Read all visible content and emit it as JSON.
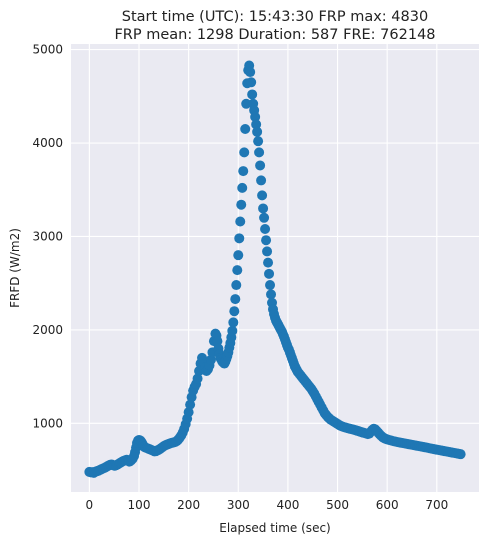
{
  "chart_data": {
    "type": "scatter",
    "title_line1": "Start time (UTC): 15:43:30 FRP max: 4830",
    "title_line2": "FRP mean: 1298 Duration: 587 FRE: 762148",
    "xlabel": "Elapsed time (sec)",
    "ylabel": "FRFD (W/m2)",
    "xlim": [
      -37,
      785
    ],
    "ylim": [
      265,
      5060
    ],
    "xticks": [
      0,
      100,
      200,
      300,
      400,
      500,
      600,
      700
    ],
    "yticks": [
      1000,
      2000,
      3000,
      4000,
      5000
    ],
    "grid": true,
    "marker_color": "#1f77b4",
    "background": "#eaeaf2",
    "series": [
      {
        "points": [
          [
            0,
            480
          ],
          [
            3,
            475
          ],
          [
            6,
            478
          ],
          [
            9,
            470
          ],
          [
            12,
            482
          ],
          [
            15,
            488
          ],
          [
            18,
            492
          ],
          [
            21,
            500
          ],
          [
            24,
            508
          ],
          [
            27,
            515
          ],
          [
            30,
            522
          ],
          [
            33,
            530
          ],
          [
            36,
            540
          ],
          [
            39,
            548
          ],
          [
            42,
            556
          ],
          [
            45,
            560
          ],
          [
            48,
            552
          ],
          [
            51,
            546
          ],
          [
            54,
            552
          ],
          [
            57,
            560
          ],
          [
            60,
            570
          ],
          [
            63,
            580
          ],
          [
            66,
            590
          ],
          [
            69,
            598
          ],
          [
            72,
            604
          ],
          [
            75,
            610
          ],
          [
            78,
            598
          ],
          [
            81,
            590
          ],
          [
            84,
            602
          ],
          [
            87,
            620
          ],
          [
            90,
            650
          ],
          [
            92,
            690
          ],
          [
            94,
            740
          ],
          [
            96,
            790
          ],
          [
            98,
            815
          ],
          [
            100,
            822
          ],
          [
            102,
            818
          ],
          [
            104,
            808
          ],
          [
            106,
            790
          ],
          [
            108,
            770
          ],
          [
            110,
            750
          ],
          [
            113,
            740
          ],
          [
            116,
            735
          ],
          [
            119,
            728
          ],
          [
            122,
            722
          ],
          [
            125,
            715
          ],
          [
            128,
            708
          ],
          [
            131,
            700
          ],
          [
            134,
            702
          ],
          [
            137,
            710
          ],
          [
            140,
            718
          ],
          [
            143,
            728
          ],
          [
            146,
            740
          ],
          [
            149,
            752
          ],
          [
            152,
            762
          ],
          [
            155,
            770
          ],
          [
            158,
            776
          ],
          [
            161,
            782
          ],
          [
            164,
            788
          ],
          [
            167,
            792
          ],
          [
            170,
            796
          ],
          [
            173,
            800
          ],
          [
            176,
            810
          ],
          [
            179,
            825
          ],
          [
            182,
            845
          ],
          [
            185,
            870
          ],
          [
            188,
            900
          ],
          [
            191,
            940
          ],
          [
            194,
            990
          ],
          [
            197,
            1050
          ],
          [
            200,
            1120
          ],
          [
            203,
            1200
          ],
          [
            206,
            1280
          ],
          [
            209,
            1350
          ],
          [
            212,
            1390
          ],
          [
            215,
            1420
          ],
          [
            218,
            1480
          ],
          [
            221,
            1560
          ],
          [
            224,
            1640
          ],
          [
            227,
            1700
          ],
          [
            230,
            1660
          ],
          [
            233,
            1600
          ],
          [
            236,
            1560
          ],
          [
            239,
            1580
          ],
          [
            242,
            1620
          ],
          [
            245,
            1680
          ],
          [
            248,
            1760
          ],
          [
            251,
            1880
          ],
          [
            254,
            1960
          ],
          [
            256,
            1940
          ],
          [
            258,
            1880
          ],
          [
            260,
            1800
          ],
          [
            262,
            1740
          ],
          [
            264,
            1700
          ],
          [
            266,
            1680
          ],
          [
            268,
            1660
          ],
          [
            270,
            1650
          ],
          [
            272,
            1640
          ],
          [
            274,
            1660
          ],
          [
            276,
            1690
          ],
          [
            278,
            1720
          ],
          [
            280,
            1760
          ],
          [
            282,
            1810
          ],
          [
            284,
            1860
          ],
          [
            286,
            1920
          ],
          [
            288,
            1990
          ],
          [
            290,
            2080
          ],
          [
            292,
            2200
          ],
          [
            294,
            2330
          ],
          [
            296,
            2480
          ],
          [
            298,
            2640
          ],
          [
            300,
            2800
          ],
          [
            302,
            2980
          ],
          [
            304,
            3160
          ],
          [
            306,
            3340
          ],
          [
            308,
            3520
          ],
          [
            310,
            3700
          ],
          [
            312,
            3900
          ],
          [
            314,
            4150
          ],
          [
            316,
            4420
          ],
          [
            318,
            4640
          ],
          [
            320,
            4780
          ],
          [
            322,
            4830
          ],
          [
            324,
            4760
          ],
          [
            326,
            4650
          ],
          [
            328,
            4520
          ],
          [
            330,
            4420
          ],
          [
            332,
            4350
          ],
          [
            334,
            4280
          ],
          [
            336,
            4200
          ],
          [
            338,
            4120
          ],
          [
            340,
            4020
          ],
          [
            342,
            3900
          ],
          [
            344,
            3760
          ],
          [
            346,
            3600
          ],
          [
            348,
            3440
          ],
          [
            350,
            3300
          ],
          [
            352,
            3200
          ],
          [
            354,
            3080
          ],
          [
            356,
            2960
          ],
          [
            358,
            2840
          ],
          [
            360,
            2720
          ],
          [
            362,
            2600
          ],
          [
            364,
            2480
          ],
          [
            366,
            2380
          ],
          [
            368,
            2290
          ],
          [
            370,
            2220
          ],
          [
            372,
            2170
          ],
          [
            374,
            2130
          ],
          [
            376,
            2100
          ],
          [
            378,
            2080
          ],
          [
            380,
            2060
          ],
          [
            382,
            2040
          ],
          [
            384,
            2020
          ],
          [
            386,
            2000
          ],
          [
            388,
            1980
          ],
          [
            390,
            1955
          ],
          [
            392,
            1930
          ],
          [
            394,
            1900
          ],
          [
            396,
            1870
          ],
          [
            398,
            1840
          ],
          [
            400,
            1810
          ],
          [
            402,
            1790
          ],
          [
            404,
            1760
          ],
          [
            406,
            1730
          ],
          [
            408,
            1700
          ],
          [
            410,
            1670
          ],
          [
            412,
            1640
          ],
          [
            414,
            1610
          ],
          [
            416,
            1590
          ],
          [
            418,
            1570
          ],
          [
            420,
            1550
          ],
          [
            423,
            1530
          ],
          [
            426,
            1510
          ],
          [
            429,
            1490
          ],
          [
            432,
            1470
          ],
          [
            435,
            1450
          ],
          [
            438,
            1430
          ],
          [
            441,
            1410
          ],
          [
            444,
            1390
          ],
          [
            447,
            1370
          ],
          [
            450,
            1345
          ],
          [
            453,
            1320
          ],
          [
            456,
            1290
          ],
          [
            459,
            1260
          ],
          [
            462,
            1230
          ],
          [
            465,
            1200
          ],
          [
            468,
            1170
          ],
          [
            471,
            1140
          ],
          [
            474,
            1110
          ],
          [
            477,
            1090
          ],
          [
            480,
            1070
          ],
          [
            483,
            1055
          ],
          [
            486,
            1040
          ],
          [
            489,
            1030
          ],
          [
            492,
            1020
          ],
          [
            495,
            1010
          ],
          [
            498,
            1000
          ],
          [
            501,
            990
          ],
          [
            504,
            980
          ],
          [
            507,
            972
          ],
          [
            510,
            965
          ],
          [
            513,
            960
          ],
          [
            516,
            955
          ],
          [
            519,
            950
          ],
          [
            522,
            946
          ],
          [
            525,
            942
          ],
          [
            528,
            938
          ],
          [
            531,
            934
          ],
          [
            534,
            930
          ],
          [
            537,
            925
          ],
          [
            540,
            920
          ],
          [
            543,
            915
          ],
          [
            546,
            910
          ],
          [
            549,
            905
          ],
          [
            552,
            900
          ],
          [
            555,
            895
          ],
          [
            558,
            890
          ],
          [
            561,
            885
          ],
          [
            564,
            890
          ],
          [
            567,
            910
          ],
          [
            570,
            930
          ],
          [
            573,
            942
          ],
          [
            576,
            935
          ],
          [
            579,
            918
          ],
          [
            582,
            900
          ],
          [
            585,
            882
          ],
          [
            588,
            866
          ],
          [
            591,
            852
          ],
          [
            594,
            842
          ],
          [
            597,
            834
          ],
          [
            600,
            828
          ],
          [
            604,
            822
          ],
          [
            608,
            816
          ],
          [
            612,
            810
          ],
          [
            616,
            805
          ],
          [
            620,
            800
          ],
          [
            624,
            796
          ],
          [
            628,
            792
          ],
          [
            632,
            788
          ],
          [
            636,
            784
          ],
          [
            640,
            780
          ],
          [
            644,
            776
          ],
          [
            648,
            772
          ],
          [
            652,
            768
          ],
          [
            656,
            764
          ],
          [
            660,
            760
          ],
          [
            664,
            756
          ],
          [
            668,
            752
          ],
          [
            672,
            748
          ],
          [
            676,
            744
          ],
          [
            680,
            740
          ],
          [
            684,
            735
          ],
          [
            688,
            730
          ],
          [
            692,
            726
          ],
          [
            696,
            722
          ],
          [
            700,
            718
          ],
          [
            704,
            714
          ],
          [
            708,
            710
          ],
          [
            712,
            706
          ],
          [
            716,
            702
          ],
          [
            720,
            698
          ],
          [
            724,
            694
          ],
          [
            728,
            690
          ],
          [
            732,
            686
          ],
          [
            736,
            682
          ],
          [
            740,
            678
          ],
          [
            744,
            674
          ],
          [
            748,
            670
          ]
        ]
      }
    ]
  }
}
